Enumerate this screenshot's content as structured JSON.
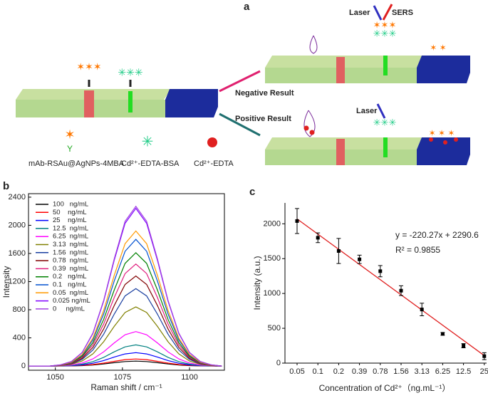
{
  "panel_a": {
    "label": "a",
    "laser_top": "Laser",
    "sers": "SERS",
    "negative": "Negative Result",
    "positive": "Positive Result",
    "laser_bottom": "Laser",
    "legend_probe": "mAb-RSAu@AgNPs-4MBA",
    "legend_bsa": "Cd²⁺-EDTA-BSA",
    "legend_edta": "Cd²⁺-EDTA"
  },
  "chart_data": [
    {
      "type": "line",
      "panel_label": "b",
      "xlabel": "Raman shift / cm⁻¹",
      "ylabel": "Intensity",
      "x": [
        1040,
        1044,
        1048,
        1052,
        1056,
        1060,
        1064,
        1068,
        1072,
        1076,
        1080,
        1084,
        1088,
        1092,
        1096,
        1100,
        1104,
        1108,
        1112
      ],
      "xlim": [
        1040,
        1113
      ],
      "xticks": [
        1050,
        1075,
        1100
      ],
      "ylim": [
        -60,
        2450
      ],
      "yticks": [
        0,
        400,
        800,
        1200,
        1600,
        2000,
        2400
      ],
      "series": [
        {
          "name": "100   ng/mL",
          "color": "#000000",
          "values": [
            0,
            0,
            0,
            1,
            2,
            6,
            14,
            29,
            47,
            63,
            70,
            63,
            47,
            29,
            14,
            6,
            2,
            1,
            0
          ]
        },
        {
          "name": "50    ng/mL",
          "color": "#ff0000",
          "values": [
            0,
            0,
            0,
            1,
            3,
            9,
            21,
            41,
            67,
            91,
            100,
            91,
            67,
            41,
            21,
            9,
            3,
            1,
            0
          ]
        },
        {
          "name": "25    ng/mL",
          "color": "#0000ff",
          "values": [
            0,
            0,
            0,
            2,
            5,
            16,
            39,
            78,
            128,
            172,
            190,
            172,
            128,
            78,
            39,
            16,
            5,
            2,
            0
          ]
        },
        {
          "name": "12.5  ng/mL",
          "color": "#008080",
          "values": [
            0,
            0,
            0,
            2,
            8,
            26,
            62,
            123,
            202,
            272,
            300,
            272,
            202,
            123,
            62,
            26,
            8,
            2,
            0
          ]
        },
        {
          "name": "6.25  ng/mL",
          "color": "#ff00ff",
          "values": [
            0,
            0,
            0,
            4,
            14,
            42,
            101,
            201,
            330,
            444,
            490,
            444,
            330,
            201,
            101,
            42,
            14,
            4,
            0
          ]
        },
        {
          "name": "3.13  ng/mL",
          "color": "#808000",
          "values": [
            0,
            0,
            0,
            7,
            24,
            71,
            173,
            345,
            566,
            761,
            840,
            761,
            566,
            345,
            173,
            71,
            24,
            7,
            0
          ]
        },
        {
          "name": "1.56  ng/mL",
          "color": "#1a3fa0",
          "values": [
            0,
            0,
            0,
            9,
            31,
            94,
            227,
            452,
            741,
            997,
            1100,
            997,
            741,
            452,
            227,
            94,
            31,
            9,
            0
          ]
        },
        {
          "name": "0.78  ng/mL",
          "color": "#800000",
          "values": [
            0,
            0,
            0,
            10,
            36,
            109,
            264,
            526,
            863,
            1160,
            1280,
            1160,
            863,
            526,
            264,
            109,
            36,
            10,
            0
          ]
        },
        {
          "name": "0.39  ng/mL",
          "color": "#e0207f",
          "values": [
            0,
            0,
            0,
            12,
            41,
            123,
            299,
            596,
            977,
            1314,
            1450,
            1314,
            977,
            596,
            299,
            123,
            41,
            12,
            0
          ]
        },
        {
          "name": "0.2   ng/mL",
          "color": "#008000",
          "values": [
            0,
            0,
            0,
            13,
            45,
            137,
            332,
            662,
            1085,
            1459,
            1610,
            1459,
            1085,
            662,
            332,
            137,
            45,
            13,
            0
          ]
        },
        {
          "name": "0.1   ng/mL",
          "color": "#0050d0",
          "values": [
            0,
            0,
            0,
            14,
            50,
            153,
            371,
            740,
            1213,
            1631,
            1800,
            1631,
            1213,
            740,
            371,
            153,
            50,
            14,
            0
          ]
        },
        {
          "name": "0.05  ng/mL",
          "color": "#ff9900",
          "values": [
            0,
            0,
            0,
            15,
            54,
            163,
            396,
            789,
            1294,
            1740,
            1920,
            1740,
            1294,
            789,
            396,
            163,
            54,
            15,
            0
          ]
        },
        {
          "name": "0.025 ng/mL",
          "color": "#8000ff",
          "values": [
            0,
            0,
            0,
            18,
            63,
            190,
            461,
            921,
            1510,
            2029,
            2240,
            2029,
            1510,
            921,
            461,
            190,
            63,
            18,
            0
          ]
        },
        {
          "name": "0     ng/mL",
          "color": "#a040e0",
          "values": [
            0,
            0,
            0,
            18,
            64,
            193,
            468,
            933,
            1530,
            2057,
            2270,
            2057,
            1530,
            933,
            468,
            193,
            64,
            18,
            0
          ]
        }
      ]
    },
    {
      "type": "scatter",
      "panel_label": "c",
      "xlabel": "Concentration of Cd²⁺（ng.mL⁻¹）",
      "ylabel": "Intensity (a.u.)",
      "categories": [
        "0.05",
        "0.1",
        "0.2",
        "0.39",
        "0.78",
        "1.56",
        "3.13",
        "6.25",
        "12.5",
        "25"
      ],
      "values": [
        2040,
        1800,
        1610,
        1490,
        1320,
        1040,
        770,
        420,
        250,
        100
      ],
      "errors": [
        180,
        70,
        180,
        60,
        80,
        70,
        90,
        20,
        30,
        50
      ],
      "color": "#000000",
      "ylim": [
        0,
        2300
      ],
      "yticks": [
        0,
        500,
        1000,
        1500,
        2000
      ],
      "fit_line": {
        "color": "#e02020",
        "start": 2070,
        "end": 108
      },
      "equation": "y = -220.27x + 2290.6",
      "r_squared": "R² = 0.9855"
    }
  ]
}
